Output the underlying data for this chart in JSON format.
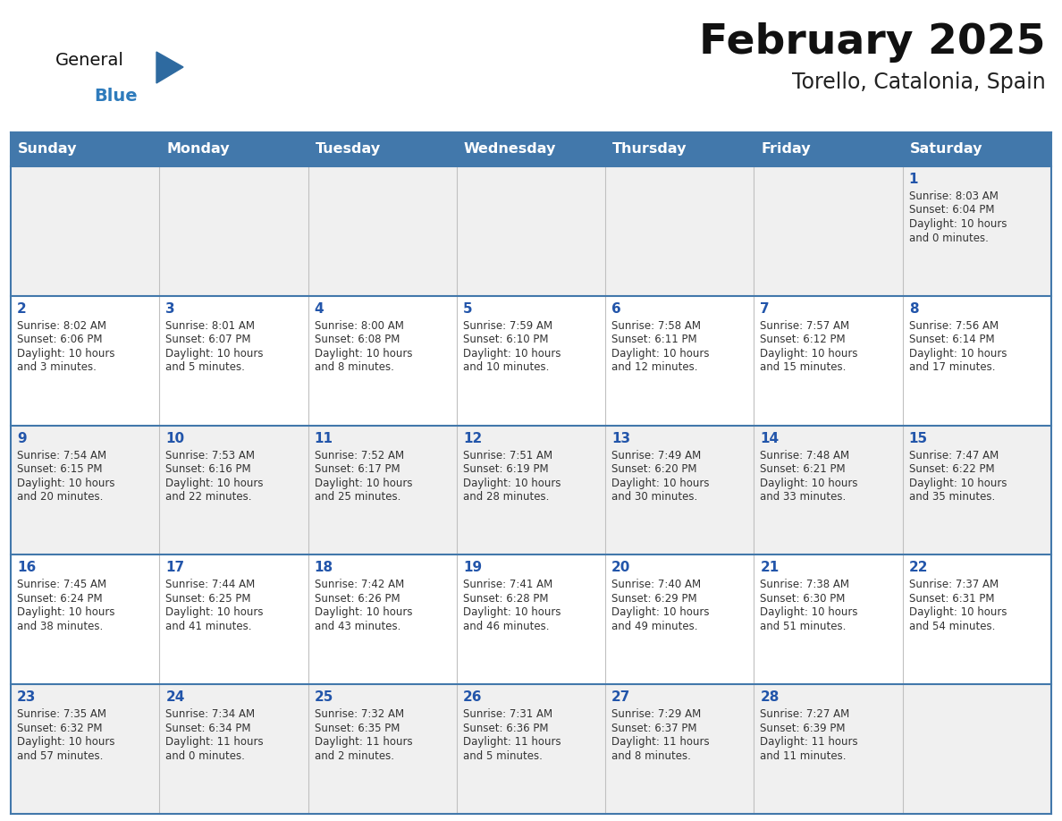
{
  "title": "February 2025",
  "subtitle": "Torello, Catalonia, Spain",
  "header_bg": "#4278ab",
  "header_text": "#ffffff",
  "day_names": [
    "Sunday",
    "Monday",
    "Tuesday",
    "Wednesday",
    "Thursday",
    "Friday",
    "Saturday"
  ],
  "row_bg_odd": "#f0f0f0",
  "row_bg_even": "#ffffff",
  "cell_border_color": "#4278ab",
  "cell_border_light": "#c0c0c0",
  "date_color": "#2255aa",
  "info_color": "#333333",
  "logo_general_color": "#111111",
  "logo_blue_color": "#2e7bbc",
  "logo_triangle_color": "#2e6aa0",
  "days": [
    {
      "day": 1,
      "col": 6,
      "row": 0,
      "sunrise": "8:03 AM",
      "sunset": "6:04 PM",
      "daylight_h": "10 hours",
      "daylight_m": "and 0 minutes."
    },
    {
      "day": 2,
      "col": 0,
      "row": 1,
      "sunrise": "8:02 AM",
      "sunset": "6:06 PM",
      "daylight_h": "10 hours",
      "daylight_m": "and 3 minutes."
    },
    {
      "day": 3,
      "col": 1,
      "row": 1,
      "sunrise": "8:01 AM",
      "sunset": "6:07 PM",
      "daylight_h": "10 hours",
      "daylight_m": "and 5 minutes."
    },
    {
      "day": 4,
      "col": 2,
      "row": 1,
      "sunrise": "8:00 AM",
      "sunset": "6:08 PM",
      "daylight_h": "10 hours",
      "daylight_m": "and 8 minutes."
    },
    {
      "day": 5,
      "col": 3,
      "row": 1,
      "sunrise": "7:59 AM",
      "sunset": "6:10 PM",
      "daylight_h": "10 hours",
      "daylight_m": "and 10 minutes."
    },
    {
      "day": 6,
      "col": 4,
      "row": 1,
      "sunrise": "7:58 AM",
      "sunset": "6:11 PM",
      "daylight_h": "10 hours",
      "daylight_m": "and 12 minutes."
    },
    {
      "day": 7,
      "col": 5,
      "row": 1,
      "sunrise": "7:57 AM",
      "sunset": "6:12 PM",
      "daylight_h": "10 hours",
      "daylight_m": "and 15 minutes."
    },
    {
      "day": 8,
      "col": 6,
      "row": 1,
      "sunrise": "7:56 AM",
      "sunset": "6:14 PM",
      "daylight_h": "10 hours",
      "daylight_m": "and 17 minutes."
    },
    {
      "day": 9,
      "col": 0,
      "row": 2,
      "sunrise": "7:54 AM",
      "sunset": "6:15 PM",
      "daylight_h": "10 hours",
      "daylight_m": "and 20 minutes."
    },
    {
      "day": 10,
      "col": 1,
      "row": 2,
      "sunrise": "7:53 AM",
      "sunset": "6:16 PM",
      "daylight_h": "10 hours",
      "daylight_m": "and 22 minutes."
    },
    {
      "day": 11,
      "col": 2,
      "row": 2,
      "sunrise": "7:52 AM",
      "sunset": "6:17 PM",
      "daylight_h": "10 hours",
      "daylight_m": "and 25 minutes."
    },
    {
      "day": 12,
      "col": 3,
      "row": 2,
      "sunrise": "7:51 AM",
      "sunset": "6:19 PM",
      "daylight_h": "10 hours",
      "daylight_m": "and 28 minutes."
    },
    {
      "day": 13,
      "col": 4,
      "row": 2,
      "sunrise": "7:49 AM",
      "sunset": "6:20 PM",
      "daylight_h": "10 hours",
      "daylight_m": "and 30 minutes."
    },
    {
      "day": 14,
      "col": 5,
      "row": 2,
      "sunrise": "7:48 AM",
      "sunset": "6:21 PM",
      "daylight_h": "10 hours",
      "daylight_m": "and 33 minutes."
    },
    {
      "day": 15,
      "col": 6,
      "row": 2,
      "sunrise": "7:47 AM",
      "sunset": "6:22 PM",
      "daylight_h": "10 hours",
      "daylight_m": "and 35 minutes."
    },
    {
      "day": 16,
      "col": 0,
      "row": 3,
      "sunrise": "7:45 AM",
      "sunset": "6:24 PM",
      "daylight_h": "10 hours",
      "daylight_m": "and 38 minutes."
    },
    {
      "day": 17,
      "col": 1,
      "row": 3,
      "sunrise": "7:44 AM",
      "sunset": "6:25 PM",
      "daylight_h": "10 hours",
      "daylight_m": "and 41 minutes."
    },
    {
      "day": 18,
      "col": 2,
      "row": 3,
      "sunrise": "7:42 AM",
      "sunset": "6:26 PM",
      "daylight_h": "10 hours",
      "daylight_m": "and 43 minutes."
    },
    {
      "day": 19,
      "col": 3,
      "row": 3,
      "sunrise": "7:41 AM",
      "sunset": "6:28 PM",
      "daylight_h": "10 hours",
      "daylight_m": "and 46 minutes."
    },
    {
      "day": 20,
      "col": 4,
      "row": 3,
      "sunrise": "7:40 AM",
      "sunset": "6:29 PM",
      "daylight_h": "10 hours",
      "daylight_m": "and 49 minutes."
    },
    {
      "day": 21,
      "col": 5,
      "row": 3,
      "sunrise": "7:38 AM",
      "sunset": "6:30 PM",
      "daylight_h": "10 hours",
      "daylight_m": "and 51 minutes."
    },
    {
      "day": 22,
      "col": 6,
      "row": 3,
      "sunrise": "7:37 AM",
      "sunset": "6:31 PM",
      "daylight_h": "10 hours",
      "daylight_m": "and 54 minutes."
    },
    {
      "day": 23,
      "col": 0,
      "row": 4,
      "sunrise": "7:35 AM",
      "sunset": "6:32 PM",
      "daylight_h": "10 hours",
      "daylight_m": "and 57 minutes."
    },
    {
      "day": 24,
      "col": 1,
      "row": 4,
      "sunrise": "7:34 AM",
      "sunset": "6:34 PM",
      "daylight_h": "11 hours",
      "daylight_m": "and 0 minutes."
    },
    {
      "day": 25,
      "col": 2,
      "row": 4,
      "sunrise": "7:32 AM",
      "sunset": "6:35 PM",
      "daylight_h": "11 hours",
      "daylight_m": "and 2 minutes."
    },
    {
      "day": 26,
      "col": 3,
      "row": 4,
      "sunrise": "7:31 AM",
      "sunset": "6:36 PM",
      "daylight_h": "11 hours",
      "daylight_m": "and 5 minutes."
    },
    {
      "day": 27,
      "col": 4,
      "row": 4,
      "sunrise": "7:29 AM",
      "sunset": "6:37 PM",
      "daylight_h": "11 hours",
      "daylight_m": "and 8 minutes."
    },
    {
      "day": 28,
      "col": 5,
      "row": 4,
      "sunrise": "7:27 AM",
      "sunset": "6:39 PM",
      "daylight_h": "11 hours",
      "daylight_m": "and 11 minutes."
    }
  ]
}
